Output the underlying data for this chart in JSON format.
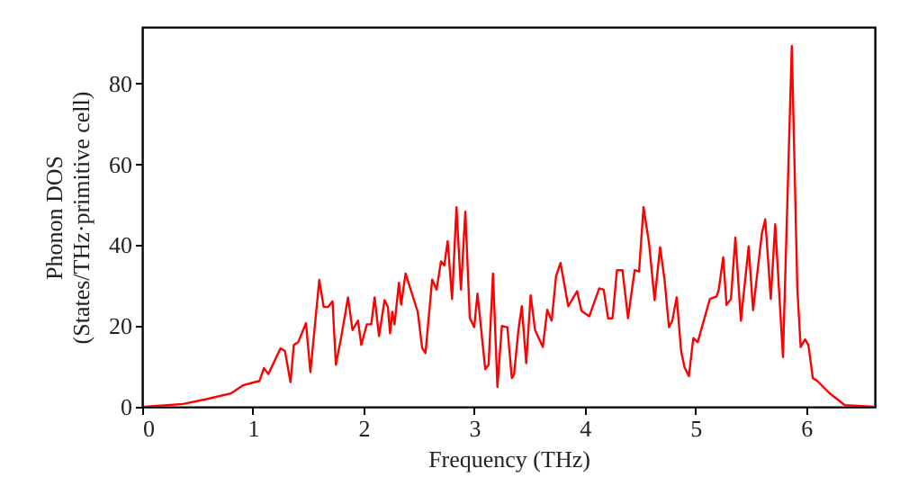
{
  "chart_data": {
    "type": "line",
    "xlabel": "Frequency (THz)",
    "ylabel": "Phonon DOS\n(States/THz·primitive cell)",
    "xlim": [
      0,
      6.62
    ],
    "ylim": [
      0,
      94
    ],
    "xticks": [
      0,
      1,
      2,
      3,
      4,
      5,
      6
    ],
    "yticks": [
      0,
      20,
      40,
      60,
      80
    ],
    "grid": false,
    "marker": "none",
    "line_style": "solid",
    "x": [
      0.02,
      0.37,
      0.58,
      0.8,
      0.91,
      0.99,
      1.06,
      1.1,
      1.14,
      1.25,
      1.29,
      1.34,
      1.37,
      1.41,
      1.48,
      1.52,
      1.6,
      1.64,
      1.68,
      1.72,
      1.75,
      1.8,
      1.86,
      1.9,
      1.95,
      1.98,
      2.03,
      2.07,
      2.1,
      2.14,
      2.19,
      2.22,
      2.24,
      2.26,
      2.28,
      2.32,
      2.34,
      2.38,
      2.49,
      2.53,
      2.56,
      2.62,
      2.66,
      2.7,
      2.73,
      2.76,
      2.8,
      2.84,
      2.88,
      2.92,
      2.96,
      3.0,
      3.03,
      3.1,
      3.13,
      3.17,
      3.21,
      3.25,
      3.3,
      3.34,
      3.36,
      3.4,
      3.43,
      3.47,
      3.51,
      3.55,
      3.62,
      3.66,
      3.7,
      3.74,
      3.78,
      3.85,
      3.93,
      3.97,
      4.04,
      4.13,
      4.17,
      4.21,
      4.25,
      4.29,
      4.34,
      4.39,
      4.45,
      4.49,
      4.53,
      4.58,
      4.63,
      4.68,
      4.72,
      4.76,
      4.79,
      4.83,
      4.87,
      4.9,
      4.94,
      4.98,
      5.02,
      5.13,
      5.19,
      5.21,
      5.25,
      5.28,
      5.32,
      5.36,
      5.41,
      5.48,
      5.52,
      5.6,
      5.63,
      5.68,
      5.72,
      5.79,
      5.87,
      5.92,
      5.95,
      5.99,
      6.02,
      6.06,
      6.1,
      6.21,
      6.35,
      6.62
    ],
    "series": [
      {
        "color": "#ff0000",
        "values": [
          0,
          0.7,
          1.9,
          3.3,
          5.3,
          5.9,
          6.4,
          9.6,
          8.1,
          14.5,
          13.8,
          6.1,
          15.3,
          16,
          20.7,
          8.6,
          31.4,
          24.7,
          24.7,
          26.1,
          10.4,
          17.5,
          27.1,
          19,
          21.3,
          15.3,
          20.4,
          20.4,
          27.1,
          17.5,
          26.4,
          24.7,
          18.2,
          23.5,
          20.4,
          30.7,
          25.3,
          33,
          23.5,
          14.5,
          13.3,
          31.5,
          29,
          36,
          35,
          41,
          26.7,
          49.4,
          29,
          48.3,
          22,
          19.7,
          28,
          9.3,
          10.4,
          33,
          4.9,
          20,
          19.7,
          7.1,
          8,
          19,
          24.9,
          10.8,
          27.6,
          19,
          14.8,
          24,
          21.3,
          32.4,
          35.6,
          24.9,
          28.6,
          23.7,
          22.4,
          29.3,
          29,
          21.9,
          21.9,
          33.8,
          33.8,
          21.9,
          33.8,
          33.5,
          49.4,
          40.5,
          26.4,
          39.5,
          31.5,
          19.7,
          21.3,
          27.1,
          13.8,
          9.8,
          7.6,
          17,
          16,
          26.7,
          27.3,
          29,
          37,
          25.2,
          26.7,
          41.9,
          21.3,
          39.7,
          23.9,
          43,
          46.4,
          26.7,
          45.2,
          12.3,
          89.3,
          29.3,
          14.8,
          16.7,
          15.3,
          7.1,
          6.4,
          3.4,
          0.4,
          0
        ]
      }
    ]
  }
}
